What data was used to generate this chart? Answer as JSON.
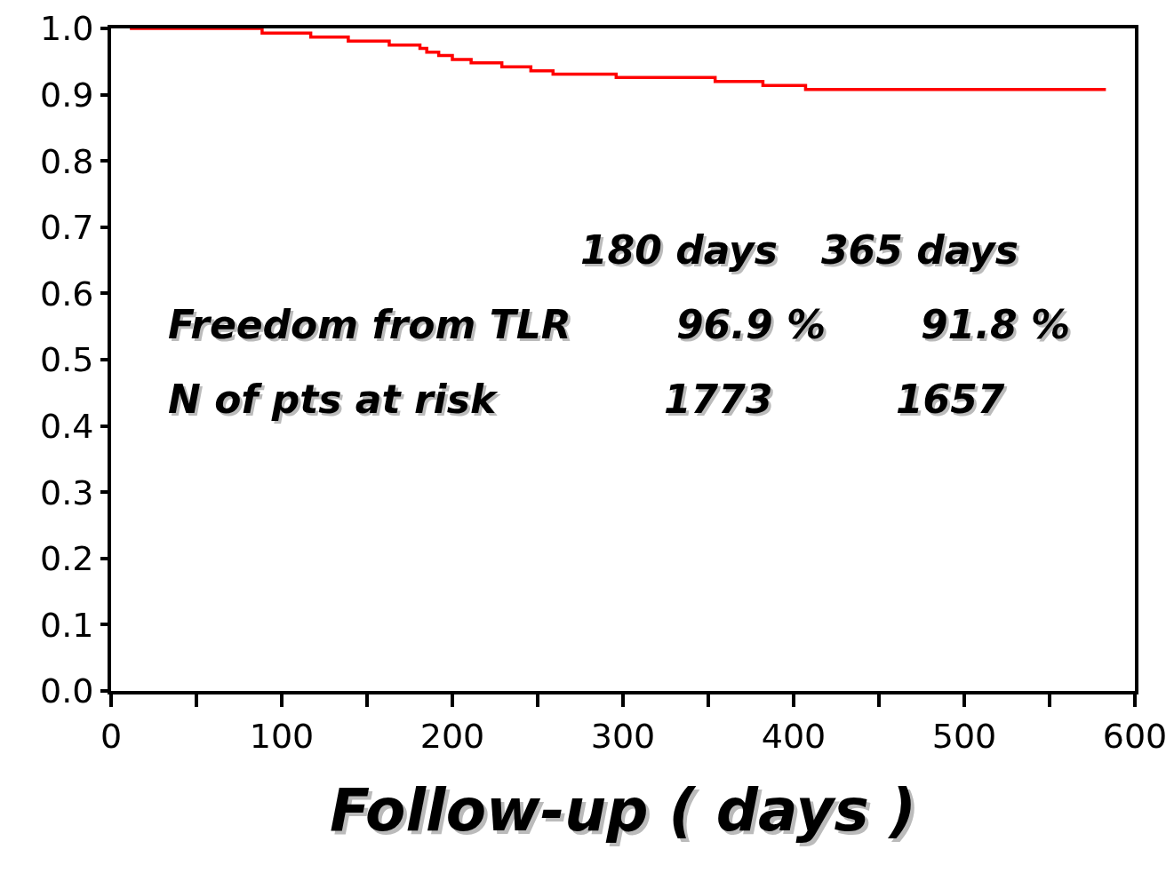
{
  "chart_data": {
    "type": "step",
    "xlabel": "Follow-up ( days )",
    "x": [
      11,
      88.5,
      117,
      139,
      163,
      181,
      185,
      192,
      200,
      211,
      229,
      246,
      259,
      296,
      354,
      382,
      407,
      583
    ],
    "series": [
      {
        "color": "#ff0000",
        "values": [
          1.0,
          0.993,
          0.987,
          0.981,
          0.975,
          0.97,
          0.964,
          0.959,
          0.953,
          0.948,
          0.942,
          0.936,
          0.931,
          0.926,
          0.92,
          0.914,
          0.908,
          0.908
        ]
      }
    ],
    "xlim": [
      0,
      600
    ],
    "xticks": [
      0,
      {
        "value": 50,
        "label": null
      },
      100,
      {
        "value": 150,
        "label": null
      },
      200,
      {
        "value": 250,
        "label": null
      },
      300,
      {
        "value": 350,
        "label": null
      },
      400,
      {
        "value": 450,
        "label": null
      },
      500,
      {
        "value": 550,
        "label": null
      },
      600
    ],
    "ylim": [
      0,
      1
    ],
    "yticks": [
      {
        "value": 0,
        "label": "0.0"
      },
      0.1,
      0.2,
      0.3,
      0.4,
      0.5,
      0.6,
      0.7,
      0.8,
      0.9,
      {
        "value": 1,
        "label": "1.0"
      }
    ],
    "line_style": "solid",
    "annotations": [
      "180 days",
      "365 days",
      "Freedom from TLR",
      "96.9 %",
      "91.8 %",
      "N of pts at risk",
      "1773",
      "1657"
    ]
  }
}
